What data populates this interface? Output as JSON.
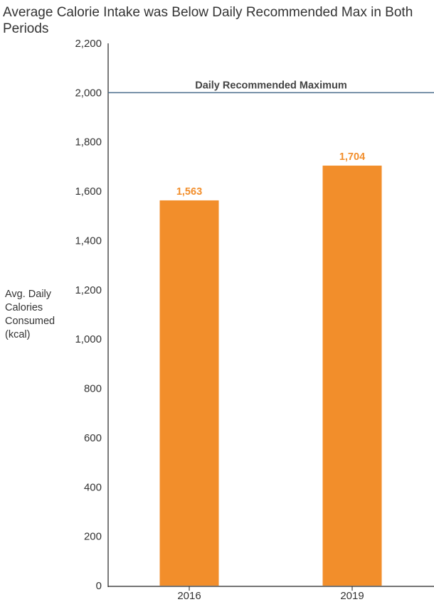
{
  "chart_data": {
    "type": "bar",
    "title": "Average Calorie Intake was Below Daily Recommended Max in Both Periods",
    "ylabel": "Avg. Daily Calories Consumed (kcal)",
    "xlabel": "",
    "categories": [
      "2016",
      "2019"
    ],
    "values": [
      1563,
      1704
    ],
    "value_labels": [
      "1,563",
      "1,704"
    ],
    "ylim": [
      0,
      2200
    ],
    "yticks": [
      0,
      200,
      400,
      600,
      800,
      1000,
      1200,
      1400,
      1600,
      1800,
      2000,
      2200
    ],
    "ytick_labels": [
      "0",
      "200",
      "400",
      "600",
      "800",
      "1,000",
      "1,200",
      "1,400",
      "1,600",
      "1,800",
      "2,000",
      "2,200"
    ],
    "reference_line": {
      "value": 2000,
      "label": "Daily Recommended Maximum",
      "color": "#4a6d8c"
    },
    "bar_color": "#f28e2b",
    "label_color": "#f28e2b",
    "grid": false,
    "legend": "none"
  }
}
